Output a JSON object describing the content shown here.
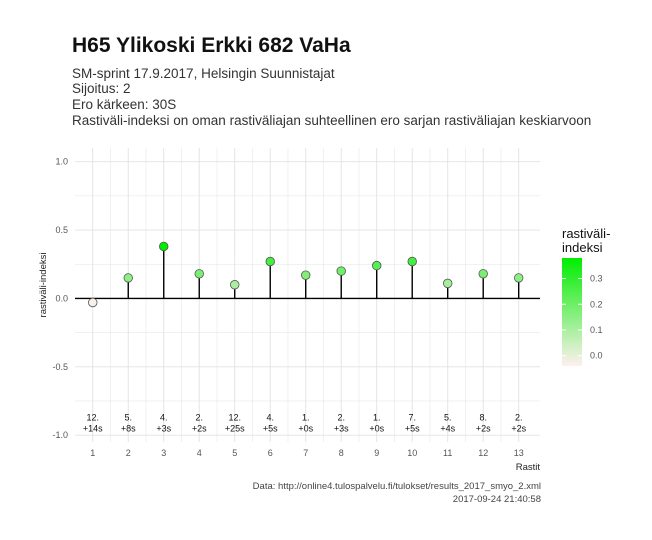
{
  "header": {
    "title": "H65 Ylikoski Erkki 682 VaHa",
    "line1": "SM-sprint 17.9.2017, Helsingin Suunnistajat",
    "line2": "Sijoitus: 2",
    "line3": "Ero kärkeen: 30S",
    "line4": "Rastiväli-indeksi on oman rastiväliajan suhteellinen ero sarjan rastiväliajan keskiarvoon"
  },
  "caption": {
    "source": "Data: http://online4.tulospalvelu.fi/tulokset/results_2017_smyo_2.xml",
    "timestamp": "2017-09-24 21:40:58"
  },
  "chart_data": {
    "type": "lollipop",
    "xlabel": "Rastit",
    "ylabel": "rastiväli-indeksi",
    "ylim": [
      -1.05,
      1.1
    ],
    "xlim": [
      0.5,
      13.6
    ],
    "yticks": [
      -1.0,
      -0.5,
      0.0,
      0.5,
      1.0
    ],
    "ytick_labels": [
      "-1.0",
      "-0.5",
      "0.0",
      "0.5",
      "1.0"
    ],
    "x": [
      1,
      2,
      3,
      4,
      5,
      6,
      7,
      8,
      9,
      10,
      11,
      12,
      13
    ],
    "values": [
      -0.03,
      0.15,
      0.38,
      0.18,
      0.1,
      0.27,
      0.17,
      0.2,
      0.24,
      0.27,
      0.11,
      0.18,
      0.15
    ],
    "point_labels": [
      [
        "12.",
        "+14s"
      ],
      [
        "5.",
        "+8s"
      ],
      [
        "4.",
        "+3s"
      ],
      [
        "2.",
        "+2s"
      ],
      [
        "12.",
        "+25s"
      ],
      [
        "4.",
        "+5s"
      ],
      [
        "1.",
        "+0s"
      ],
      [
        "2.",
        "+3s"
      ],
      [
        "1.",
        "+0s"
      ],
      [
        "7.",
        "+5s"
      ],
      [
        "5.",
        "+4s"
      ],
      [
        "8.",
        "+2s"
      ],
      [
        "2.",
        "+2s"
      ]
    ],
    "label_y": -0.93,
    "grid": true,
    "legend": {
      "title_lines": [
        "rastiväli-",
        "indeksi"
      ],
      "placement": "right",
      "min": -0.04,
      "max": 0.38,
      "ticks": [
        0.0,
        0.1,
        0.2,
        0.3
      ],
      "tick_labels": [
        "0.0",
        "0.1",
        "0.2",
        "0.3"
      ],
      "color_low": "#fff0f0",
      "color_high": "#00ee00"
    },
    "colors": {
      "stem": "#000000",
      "zero_line": "#000000",
      "grid": "#e2e2e2",
      "point_stroke": "#555555"
    }
  }
}
